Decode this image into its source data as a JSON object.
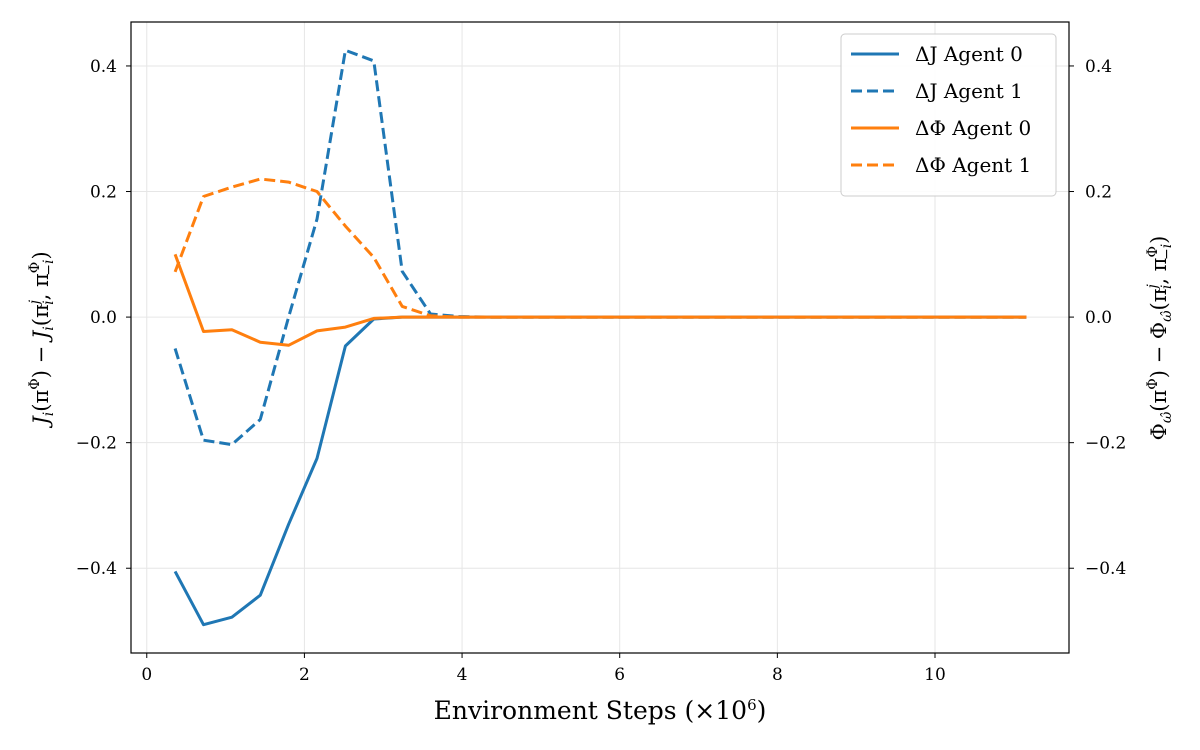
{
  "chart_data": {
    "type": "line",
    "title": "",
    "xlabel": "Environment Steps (×10⁶)",
    "ylabel_left": "Jᵢ(π^Φ) − Jᵢ(πᵢʲ, π₋ᵢ^Φ)",
    "ylabel_right": "Φ_ω̂(π^Φ) − Φ_ω̂(πᵢʲ, π₋ᵢ^Φ)",
    "xlim": [
      -0.2,
      11.7
    ],
    "ylim": [
      -0.535,
      0.47
    ],
    "xticks": [
      0,
      2,
      4,
      6,
      8,
      10
    ],
    "xtick_labels": [
      "0",
      "2",
      "4",
      "6",
      "8",
      "10"
    ],
    "yticks": [
      -0.4,
      -0.2,
      0.0,
      0.2,
      0.4
    ],
    "ytick_labels": [
      "−0.4",
      "−0.2",
      "0.0",
      "0.2",
      "0.4"
    ],
    "grid": true,
    "legend_position": "top-right",
    "series": [
      {
        "name": "ΔJ Agent 0",
        "color": "#1f77b4",
        "dash": "solid",
        "x": [
          0.36,
          0.72,
          1.08,
          1.44,
          1.8,
          2.16,
          2.52,
          2.88,
          3.24,
          3.6,
          3.96,
          4.32,
          4.68,
          5.04,
          5.4,
          5.76,
          6.12,
          6.48,
          6.84,
          7.2,
          7.56,
          7.92,
          8.28,
          8.64,
          9.0,
          9.36,
          9.72,
          10.08,
          10.44,
          10.8,
          11.16
        ],
        "y": [
          -0.405,
          -0.49,
          -0.478,
          -0.443,
          -0.33,
          -0.225,
          -0.046,
          -0.003,
          0.0,
          0,
          0,
          0,
          0,
          0,
          0,
          0,
          0,
          0,
          0,
          0,
          0,
          0,
          0,
          0,
          0,
          0,
          0,
          0,
          0,
          0,
          0
        ]
      },
      {
        "name": "ΔJ Agent 1",
        "color": "#1f77b4",
        "dash": "dashed",
        "x": [
          0.36,
          0.72,
          1.08,
          1.44,
          1.8,
          2.16,
          2.52,
          2.88,
          3.24,
          3.6,
          3.96,
          4.32,
          4.68,
          5.04,
          5.4,
          5.76,
          6.12,
          6.48,
          6.84,
          7.2,
          7.56,
          7.92,
          8.28,
          8.64,
          9.0,
          9.36,
          9.72,
          10.08,
          10.44,
          10.8,
          11.16
        ],
        "y": [
          -0.05,
          -0.196,
          -0.203,
          -0.163,
          0.0,
          0.156,
          0.425,
          0.408,
          0.073,
          0.005,
          0.001,
          0,
          0,
          0,
          0,
          0,
          0,
          0,
          0,
          0,
          0,
          0,
          0,
          0,
          0,
          0,
          0,
          0,
          0,
          0,
          0
        ]
      },
      {
        "name": "ΔΦ Agent 0",
        "color": "#ff7f0e",
        "dash": "solid",
        "x": [
          0.36,
          0.72,
          1.08,
          1.44,
          1.8,
          2.16,
          2.52,
          2.88,
          3.24,
          3.6,
          3.96,
          4.32,
          4.68,
          5.04,
          5.4,
          5.76,
          6.12,
          6.48,
          6.84,
          7.2,
          7.56,
          7.92,
          8.28,
          8.64,
          9.0,
          9.36,
          9.72,
          10.08,
          10.44,
          10.8,
          11.16
        ],
        "y": [
          0.1,
          -0.023,
          -0.02,
          -0.04,
          -0.045,
          -0.022,
          -0.016,
          -0.002,
          0.0,
          0,
          0,
          0,
          0,
          0,
          0,
          0,
          0,
          0,
          0,
          0,
          0,
          0,
          0,
          0,
          0,
          0,
          0,
          0,
          0,
          0,
          0
        ]
      },
      {
        "name": "ΔΦ Agent 1",
        "color": "#ff7f0e",
        "dash": "dashed",
        "x": [
          0.36,
          0.72,
          1.08,
          1.44,
          1.8,
          2.16,
          2.52,
          2.88,
          3.24,
          3.6,
          3.96,
          4.32,
          4.68,
          5.04,
          5.4,
          5.76,
          6.12,
          6.48,
          6.84,
          7.2,
          7.56,
          7.92,
          8.28,
          8.64,
          9.0,
          9.36,
          9.72,
          10.08,
          10.44,
          10.8,
          11.16
        ],
        "y": [
          0.072,
          0.192,
          0.207,
          0.22,
          0.215,
          0.2,
          0.145,
          0.095,
          0.017,
          0.002,
          0,
          0,
          0,
          0,
          0,
          0,
          0,
          0,
          0,
          0,
          0,
          0,
          0,
          0,
          0,
          0,
          0,
          0,
          0,
          0,
          0
        ]
      }
    ]
  }
}
